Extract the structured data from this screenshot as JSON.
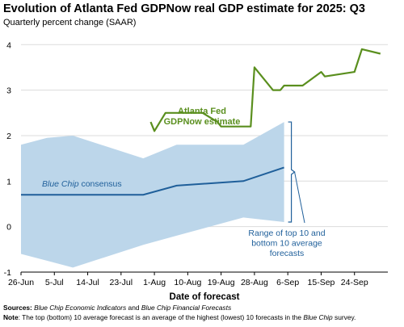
{
  "chart_data": {
    "type": "line",
    "title": "Evolution of Atlanta Fed GDPNow real GDP estimate for 2025: Q3",
    "subtitle": "Quarterly percent change (SAAR)",
    "xlabel": "Date of forecast",
    "ylabel": "",
    "x_ticks": [
      "26-Jun",
      "5-Jul",
      "14-Jul",
      "23-Jul",
      "1-Aug",
      "10-Aug",
      "19-Aug",
      "28-Aug",
      "6-Sep",
      "15-Sep",
      "24-Sep"
    ],
    "y_ticks": [
      -1,
      0,
      1,
      2,
      3,
      4
    ],
    "ylim": [
      -1,
      4.2
    ],
    "x_range": [
      "2025-06-26",
      "2025-10-03"
    ],
    "grid": true,
    "gdpnow": {
      "label": [
        "Atlanta Fed",
        "GDPNow estimate"
      ],
      "color": "#5a8f1e",
      "points": [
        [
          "2025-07-31",
          2.3
        ],
        [
          "2025-08-01",
          2.1
        ],
        [
          "2025-08-04",
          2.5
        ],
        [
          "2025-08-08",
          2.5
        ],
        [
          "2025-08-14",
          2.5
        ],
        [
          "2025-08-18",
          2.3
        ],
        [
          "2025-08-19",
          2.2
        ],
        [
          "2025-08-22",
          2.2
        ],
        [
          "2025-08-26",
          2.2
        ],
        [
          "2025-08-27",
          2.2
        ],
        [
          "2025-08-28",
          3.5
        ],
        [
          "2025-09-02",
          3.0
        ],
        [
          "2025-09-04",
          3.0
        ],
        [
          "2025-09-05",
          3.1
        ],
        [
          "2025-09-10",
          3.1
        ],
        [
          "2025-09-15",
          3.4
        ],
        [
          "2025-09-16",
          3.3
        ],
        [
          "2025-09-24",
          3.4
        ],
        [
          "2025-09-26",
          3.9
        ],
        [
          "2025-10-01",
          3.8
        ]
      ]
    },
    "blue_chip": {
      "label_italic": "Blue Chip",
      "label_rest": " consensus",
      "color": "#1f5f9a",
      "points": [
        [
          "2025-06-26",
          0.7
        ],
        [
          "2025-07-03",
          0.7
        ],
        [
          "2025-07-10",
          0.7
        ],
        [
          "2025-07-29",
          0.7
        ],
        [
          "2025-08-07",
          0.9
        ],
        [
          "2025-08-25",
          1.0
        ],
        [
          "2025-09-05",
          1.3
        ]
      ]
    },
    "range_band": {
      "color": "#bcd6ea",
      "upper": [
        [
          "2025-06-26",
          1.8
        ],
        [
          "2025-07-03",
          1.95
        ],
        [
          "2025-07-10",
          2.0
        ],
        [
          "2025-07-29",
          1.5
        ],
        [
          "2025-08-07",
          1.8
        ],
        [
          "2025-08-25",
          1.8
        ],
        [
          "2025-09-05",
          2.3
        ]
      ],
      "lower": [
        [
          "2025-06-26",
          -0.6
        ],
        [
          "2025-07-03",
          -0.75
        ],
        [
          "2025-07-10",
          -0.9
        ],
        [
          "2025-07-29",
          -0.4
        ],
        [
          "2025-08-07",
          -0.2
        ],
        [
          "2025-08-25",
          0.2
        ],
        [
          "2025-09-05",
          0.1
        ]
      ],
      "label": [
        "Range of top 10 and",
        "bottom 10 average",
        "forecasts"
      ]
    }
  },
  "footer": {
    "sources_label": "Sources:",
    "sources_italic_1": "Blue Chip Economic Indicators",
    "sources_mid": " and ",
    "sources_italic_2": "Blue Chip Financial Forecasts",
    "note_label": "Note",
    "note_text_1": ": The top (bottom) 10 average forecast is an average of the highest (lowest) 10 forecasts in the ",
    "note_italic": "Blue Chip",
    "note_text_2": " survey."
  }
}
